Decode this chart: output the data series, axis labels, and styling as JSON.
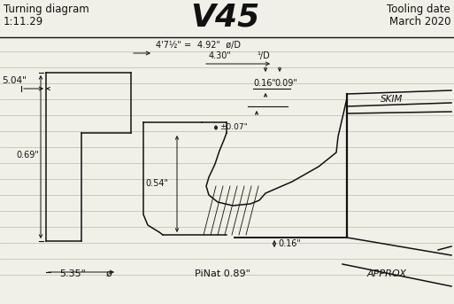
{
  "title": "V45",
  "header_left1": "Turning diagram",
  "header_left2": "1:11.29",
  "header_right1": "Tooling date",
  "header_right2": "March 2020",
  "bg_color": "#f0f0e8",
  "line_color": "#111111",
  "ruled_color": "#bbbbaa",
  "dim_504": "5.04\"",
  "dim_069": "0.69\"",
  "dim_007": "±0.07\"",
  "dim_054": "0.54\"",
  "dim_416": "4'7½\" =",
  "dim_492": "4.92\"  ø/D",
  "dim_430": "4.30\"",
  "dim_1D": "¹/D",
  "dim_016a": "0.16\"",
  "dim_009": "0.09\"",
  "dim_016b": "0.16\"",
  "dim_535": "5.35\"",
  "dim_phi": "ø",
  "dim_pinat": "PiNat 0.89\"",
  "label_skim": "SKIM",
  "label_approx": "APPROX"
}
